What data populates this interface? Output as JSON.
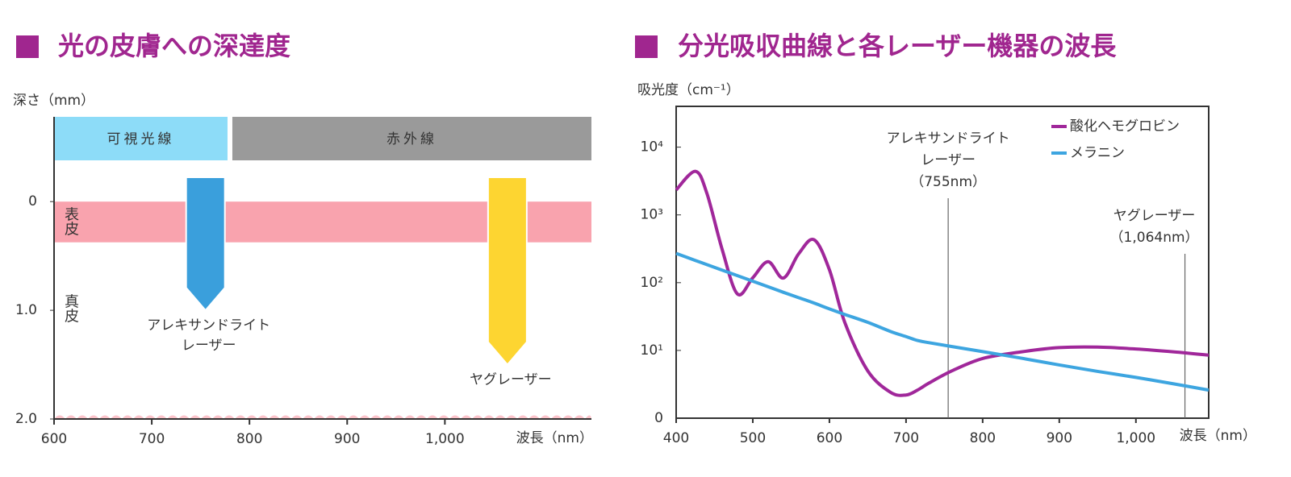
{
  "chart_data": [
    {
      "type": "depth",
      "title": "光の皮膚への深達度",
      "ylabel": "深さ（mm）",
      "xlabel": "波長（nm）",
      "xlim": [
        600,
        1150
      ],
      "xticks": [
        600,
        700,
        800,
        900,
        {
          "value": 1000,
          "label": "1,000"
        }
      ],
      "ylim": [
        -0.78,
        2
      ],
      "yticks": [
        0,
        {
          "value": 1,
          "label": "1.0"
        },
        {
          "value": 2,
          "label": "2.0"
        }
      ],
      "bands": [
        {
          "label": "可視光線",
          "start": 600,
          "end": 780,
          "color": "#8ddcf8"
        },
        {
          "label": "赤外線",
          "start": 780,
          "end": 1150,
          "color": "#9a9a9a"
        }
      ],
      "layers": [
        {
          "label": "表皮",
          "top": 0,
          "bottom": 0.33,
          "color": "#f9a3ae"
        },
        {
          "label": "真皮",
          "top": 0.33,
          "bottom": 2,
          "color": "#fbc3ca"
        }
      ],
      "lasers": [
        {
          "label_lines": [
            "アレキサンドライト",
            "レーザー"
          ],
          "wavelength": 755,
          "depth": 1,
          "color": "#3a9fdc"
        },
        {
          "label_lines": [
            "ヤグレーザー"
          ],
          "wavelength": 1064,
          "depth": 1.5,
          "color": "#fdd531"
        }
      ]
    },
    {
      "type": "line",
      "title": "分光吸収曲線と各レーザー機器の波長",
      "ylabel": "吸光度（cm⁻¹）",
      "xlabel": "波長（nm）",
      "log_y": true,
      "legend": "upper right",
      "xlim": [
        400,
        1095
      ],
      "xticks": [
        400,
        500,
        600,
        700,
        800,
        900,
        {
          "value": 1000,
          "label": "1,000"
        }
      ],
      "ylim": [
        1,
        40000
      ],
      "yticks": [
        {
          "value": 1,
          "label": "0"
        },
        {
          "value": 10,
          "label": "10¹"
        },
        {
          "value": 100,
          "label": "10²"
        },
        {
          "value": 1000,
          "label": "10³"
        },
        {
          "value": 10000,
          "label": "10⁴"
        }
      ],
      "x": [
        400,
        425,
        440,
        460,
        480,
        500,
        520,
        540,
        560,
        580,
        600,
        620,
        650,
        680,
        700,
        715,
        730,
        760,
        800,
        850,
        900,
        950,
        1000,
        1050,
        1095
      ],
      "series": [
        {
          "name": "酸化ヘモグロビン",
          "color": "#a0279a",
          "values": [
            2340,
            4400,
            2100,
            310,
            68,
            118,
            204,
            117,
            268,
            430,
            155,
            26,
            5,
            2.4,
            2.2,
            2.6,
            3.3,
            5,
            7.6,
            9.5,
            11,
            11.2,
            10.5,
            9.5,
            8.5
          ]
        },
        {
          "name": "メラニン",
          "color": "#3da5e0",
          "values": [
            270,
            213,
            185,
            153,
            127,
            105,
            87,
            72,
            60,
            50,
            41,
            34,
            26,
            19,
            16,
            14,
            13,
            11.4,
            9.6,
            7.7,
            6.1,
            4.9,
            4.0,
            3.2,
            2.6
          ]
        }
      ],
      "markers": [
        {
          "x": 755,
          "label_lines": [
            "アレキサンドライト",
            "レーザー",
            "（755nm）"
          ]
        },
        {
          "x": 1064,
          "label_lines": [
            "ヤグレーザー",
            "（1,064nm）"
          ]
        }
      ]
    }
  ]
}
